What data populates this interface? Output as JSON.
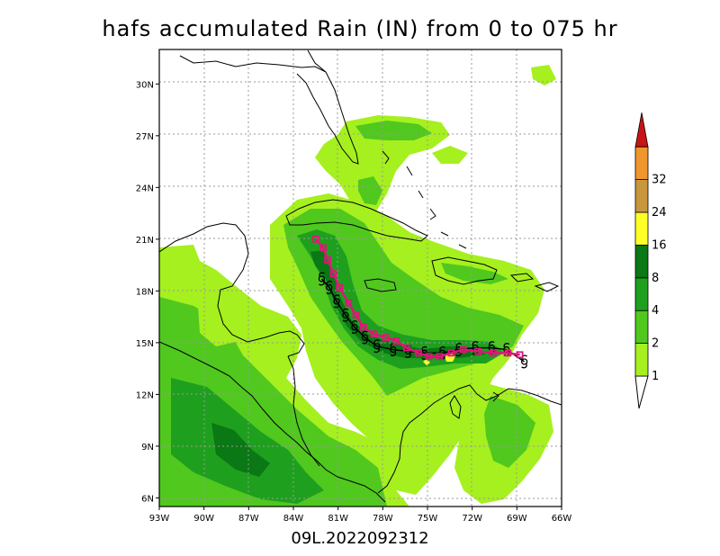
{
  "title": "hafs accumulated Rain (IN) from 0 to 075 hr",
  "subtitle": "09L.2022092312",
  "map": {
    "lon_range": [
      -93,
      -66
    ],
    "lat_range": [
      5.5,
      32
    ],
    "lat_ticks": [
      {
        "value": 30,
        "label": "30N"
      },
      {
        "value": 27,
        "label": "27N"
      },
      {
        "value": 24,
        "label": "24N"
      },
      {
        "value": 21,
        "label": "21N"
      },
      {
        "value": 18,
        "label": "18N"
      },
      {
        "value": 15,
        "label": "15N"
      },
      {
        "value": 12,
        "label": "12N"
      },
      {
        "value": 9,
        "label": "9N"
      },
      {
        "value": 6,
        "label": "6N"
      }
    ],
    "lon_ticks": [
      {
        "value": -93,
        "label": "93W"
      },
      {
        "value": -90,
        "label": "90W"
      },
      {
        "value": -87,
        "label": "87W"
      },
      {
        "value": -84,
        "label": "84W"
      },
      {
        "value": -81,
        "label": "81W"
      },
      {
        "value": -78,
        "label": "78W"
      },
      {
        "value": -75,
        "label": "75W"
      },
      {
        "value": -72,
        "label": "72W"
      },
      {
        "value": -69,
        "label": "69W"
      },
      {
        "value": -66,
        "label": "66W"
      }
    ],
    "grid": true
  },
  "colorbar": {
    "levels": [
      {
        "label": "1",
        "color": "#a5f01e"
      },
      {
        "label": "2",
        "color": "#50c81e"
      },
      {
        "label": "4",
        "color": "#1ea01e"
      },
      {
        "label": "8",
        "color": "#0a7814"
      },
      {
        "label": "16",
        "color": "#ffff28"
      },
      {
        "label": "24",
        "color": "#c8963c"
      },
      {
        "label": "32",
        "color": "#f0962d"
      }
    ],
    "top_color": "#c81414"
  },
  "track_forecast": {
    "marker": "square",
    "color": "#e0157a",
    "points": [
      [
        -68.8,
        14.3
      ],
      [
        -69.6,
        14.4
      ],
      [
        -70.6,
        14.4
      ],
      [
        -71.6,
        14.5
      ],
      [
        -72.6,
        14.6
      ],
      [
        -73.4,
        14.4
      ],
      [
        -74.2,
        14.2
      ],
      [
        -74.9,
        14.2
      ],
      [
        -75.6,
        14.4
      ],
      [
        -76.4,
        14.7
      ],
      [
        -77.1,
        15.1
      ],
      [
        -77.8,
        15.3
      ],
      [
        -78.6,
        15.5
      ],
      [
        -79.3,
        15.9
      ],
      [
        -79.8,
        16.6
      ],
      [
        -80.3,
        17.3
      ],
      [
        -80.9,
        18.2
      ],
      [
        -81.3,
        19.0
      ],
      [
        -81.7,
        19.8
      ],
      [
        -82.0,
        20.5
      ],
      [
        -82.5,
        21.0
      ]
    ]
  },
  "track_best": {
    "marker": "hurricane-symbol",
    "color": "#000000",
    "points": [
      [
        -68.5,
        13.9
      ],
      [
        -69.7,
        14.6
      ],
      [
        -70.7,
        14.7
      ],
      [
        -71.8,
        14.7
      ],
      [
        -72.9,
        14.6
      ],
      [
        -74.0,
        14.4
      ],
      [
        -75.2,
        14.4
      ],
      [
        -76.3,
        14.5
      ],
      [
        -77.3,
        14.6
      ],
      [
        -78.4,
        14.8
      ],
      [
        -79.2,
        15.3
      ],
      [
        -79.9,
        15.9
      ],
      [
        -80.5,
        16.6
      ],
      [
        -81.1,
        17.4
      ],
      [
        -81.6,
        18.2
      ],
      [
        -82.1,
        18.7
      ]
    ]
  }
}
